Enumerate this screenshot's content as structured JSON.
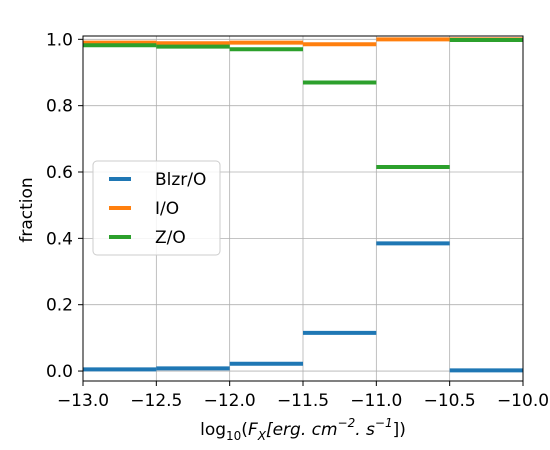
{
  "chart_data": {
    "type": "line",
    "xlabel_parts": {
      "log_base": "log",
      "log_sub": "10",
      "open": "(",
      "F": "F",
      "F_sub": "X",
      "bracket_open": "[erg. cm",
      "cm_exp": "−2",
      "sep": ". s",
      "s_exp": "−1",
      "bracket_close": "])"
    },
    "ylabel": "fraction",
    "xlim": [
      -13.0,
      -10.0
    ],
    "ylim": [
      0.0,
      1.0
    ],
    "x_ticks": [
      -13.0,
      -12.5,
      -12.0,
      -11.5,
      -11.0,
      -10.5,
      -10.0
    ],
    "x_tick_labels": [
      "−13.0",
      "−12.5",
      "−12.0",
      "−11.5",
      "−11.0",
      "−10.5",
      "−10.0"
    ],
    "y_ticks": [
      0.0,
      0.2,
      0.4,
      0.6,
      0.8,
      1.0
    ],
    "y_tick_labels": [
      "0.0",
      "0.2",
      "0.4",
      "0.6",
      "0.8",
      "1.0"
    ],
    "grid": true,
    "legend_position": "center-left",
    "bins": [
      [
        -13.0,
        -12.5
      ],
      [
        -12.5,
        -12.0
      ],
      [
        -12.0,
        -11.5
      ],
      [
        -11.5,
        -11.0
      ],
      [
        -11.0,
        -10.5
      ],
      [
        -10.5,
        -10.0
      ]
    ],
    "series": [
      {
        "name": "Blzr/O",
        "color": "#1f77b4",
        "values": [
          0.005,
          0.008,
          0.022,
          0.115,
          0.385,
          0.002
        ]
      },
      {
        "name": "I/O",
        "color": "#ff7f0e",
        "values": [
          0.99,
          0.988,
          0.99,
          0.985,
          1.0,
          1.0
        ]
      },
      {
        "name": "Z/O",
        "color": "#2ca02c",
        "values": [
          0.982,
          0.978,
          0.97,
          0.87,
          0.615,
          0.998
        ]
      }
    ]
  }
}
